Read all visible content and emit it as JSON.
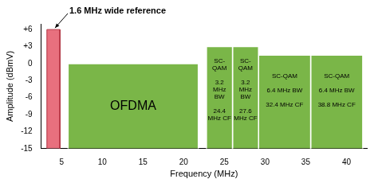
{
  "chart_data": {
    "type": "bar",
    "x_label": "Frequency (MHz)",
    "y_label": "Amplitude (dBmV)",
    "xlim": [
      2.5,
      42.5
    ],
    "xticks": [
      5,
      10,
      15,
      20,
      25,
      30,
      35,
      40
    ],
    "ylim": [
      -15,
      7
    ],
    "yticks": [
      {
        "value": 6,
        "label": "+6"
      },
      {
        "value": 3,
        "label": "+3"
      },
      0,
      -3,
      -6,
      -9,
      -12,
      -15
    ],
    "grid": false,
    "series": [
      {
        "color": "#e8707e",
        "x": [
          3.2,
          4.8
        ],
        "values": [
          6,
          6
        ]
      },
      {
        "name": "OFDMA",
        "color": "#7ab648",
        "x": [
          5.8,
          21.8
        ],
        "values": [
          0,
          0
        ]
      },
      {
        "name": "SC-QAM",
        "color": "#7ab648",
        "x": [
          22.8,
          26.0
        ],
        "values": [
          3,
          3
        ],
        "bandwidth": "3.2 MHz BW",
        "center_frequency": "24.4 MHz CF"
      },
      {
        "name": "SC-QAM",
        "color": "#7ab648",
        "x": [
          26.0,
          29.2
        ],
        "values": [
          3,
          3
        ],
        "bandwidth": "3.2 MHz BW",
        "center_frequency": "27.6 MHz CF"
      },
      {
        "name": "SC-QAM",
        "color": "#7ab648",
        "x": [
          29.2,
          35.6
        ],
        "values": [
          1.5,
          1.5
        ],
        "bandwidth": "6.4 MHz BW",
        "center_frequency": "32.4 MHz CF"
      },
      {
        "name": "SC-QAM",
        "color": "#7ab648",
        "x": [
          35.6,
          42.0
        ],
        "values": [
          1.5,
          1.5
        ],
        "bandwidth": "6.4 MHz BW",
        "center_frequency": "38.8 MHz CF"
      }
    ],
    "annotations": [
      {
        "text": "1.6 MHz wide reference",
        "x": 4,
        "y": 6
      }
    ]
  }
}
